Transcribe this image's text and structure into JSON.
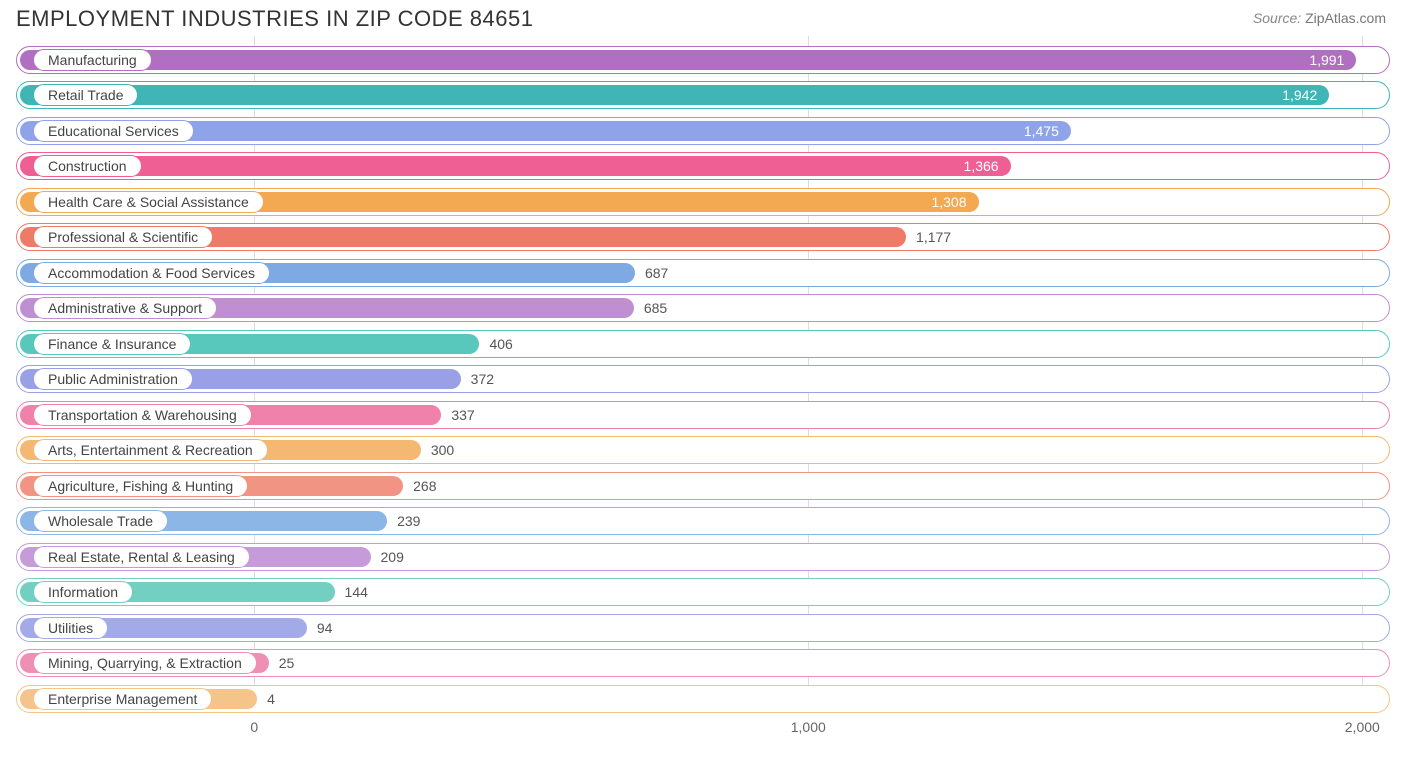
{
  "title": "EMPLOYMENT INDUSTRIES IN ZIP CODE 84651",
  "source_label": "Source:",
  "source_site": "ZipAtlas.com",
  "chart": {
    "type": "bar-horizontal",
    "x_min": -430,
    "x_max": 2050,
    "ticks": [
      {
        "value": 0,
        "label": "0"
      },
      {
        "value": 1000,
        "label": "1,000"
      },
      {
        "value": 2000,
        "label": "2,000"
      }
    ],
    "grid_color": "#dddddd",
    "track_bg": "#ffffff",
    "bar_radius": 11,
    "label_value_inside_threshold": 1300,
    "rows": [
      {
        "label": "Manufacturing",
        "value": 1991,
        "display": "1,991",
        "color": "#b06fc0"
      },
      {
        "label": "Retail Trade",
        "value": 1942,
        "display": "1,942",
        "color": "#3fb5b5"
      },
      {
        "label": "Educational Services",
        "value": 1475,
        "display": "1,475",
        "color": "#8fa4e8"
      },
      {
        "label": "Construction",
        "value": 1366,
        "display": "1,366",
        "color": "#ef5f94"
      },
      {
        "label": "Health Care & Social Assistance",
        "value": 1308,
        "display": "1,308",
        "color": "#f3a852"
      },
      {
        "label": "Professional & Scientific",
        "value": 1177,
        "display": "1,177",
        "color": "#ef7a67"
      },
      {
        "label": "Accommodation & Food Services",
        "value": 687,
        "display": "687",
        "color": "#7ea9e3"
      },
      {
        "label": "Administrative & Support",
        "value": 685,
        "display": "685",
        "color": "#c08fd2"
      },
      {
        "label": "Finance & Insurance",
        "value": 406,
        "display": "406",
        "color": "#58c7bc"
      },
      {
        "label": "Public Administration",
        "value": 372,
        "display": "372",
        "color": "#9aa0e6"
      },
      {
        "label": "Transportation & Warehousing",
        "value": 337,
        "display": "337",
        "color": "#ef81aa"
      },
      {
        "label": "Arts, Entertainment & Recreation",
        "value": 300,
        "display": "300",
        "color": "#f5b873"
      },
      {
        "label": "Agriculture, Fishing & Hunting",
        "value": 268,
        "display": "268",
        "color": "#f19483"
      },
      {
        "label": "Wholesale Trade",
        "value": 239,
        "display": "239",
        "color": "#8cb6e6"
      },
      {
        "label": "Real Estate, Rental & Leasing",
        "value": 209,
        "display": "209",
        "color": "#c59bda"
      },
      {
        "label": "Information",
        "value": 144,
        "display": "144",
        "color": "#73cfc2"
      },
      {
        "label": "Utilities",
        "value": 94,
        "display": "94",
        "color": "#a3aae8"
      },
      {
        "label": "Mining, Quarrying, & Extraction",
        "value": 25,
        "display": "25",
        "color": "#f08fb5"
      },
      {
        "label": "Enterprise Management",
        "value": 4,
        "display": "4",
        "color": "#f5c48a"
      }
    ]
  }
}
